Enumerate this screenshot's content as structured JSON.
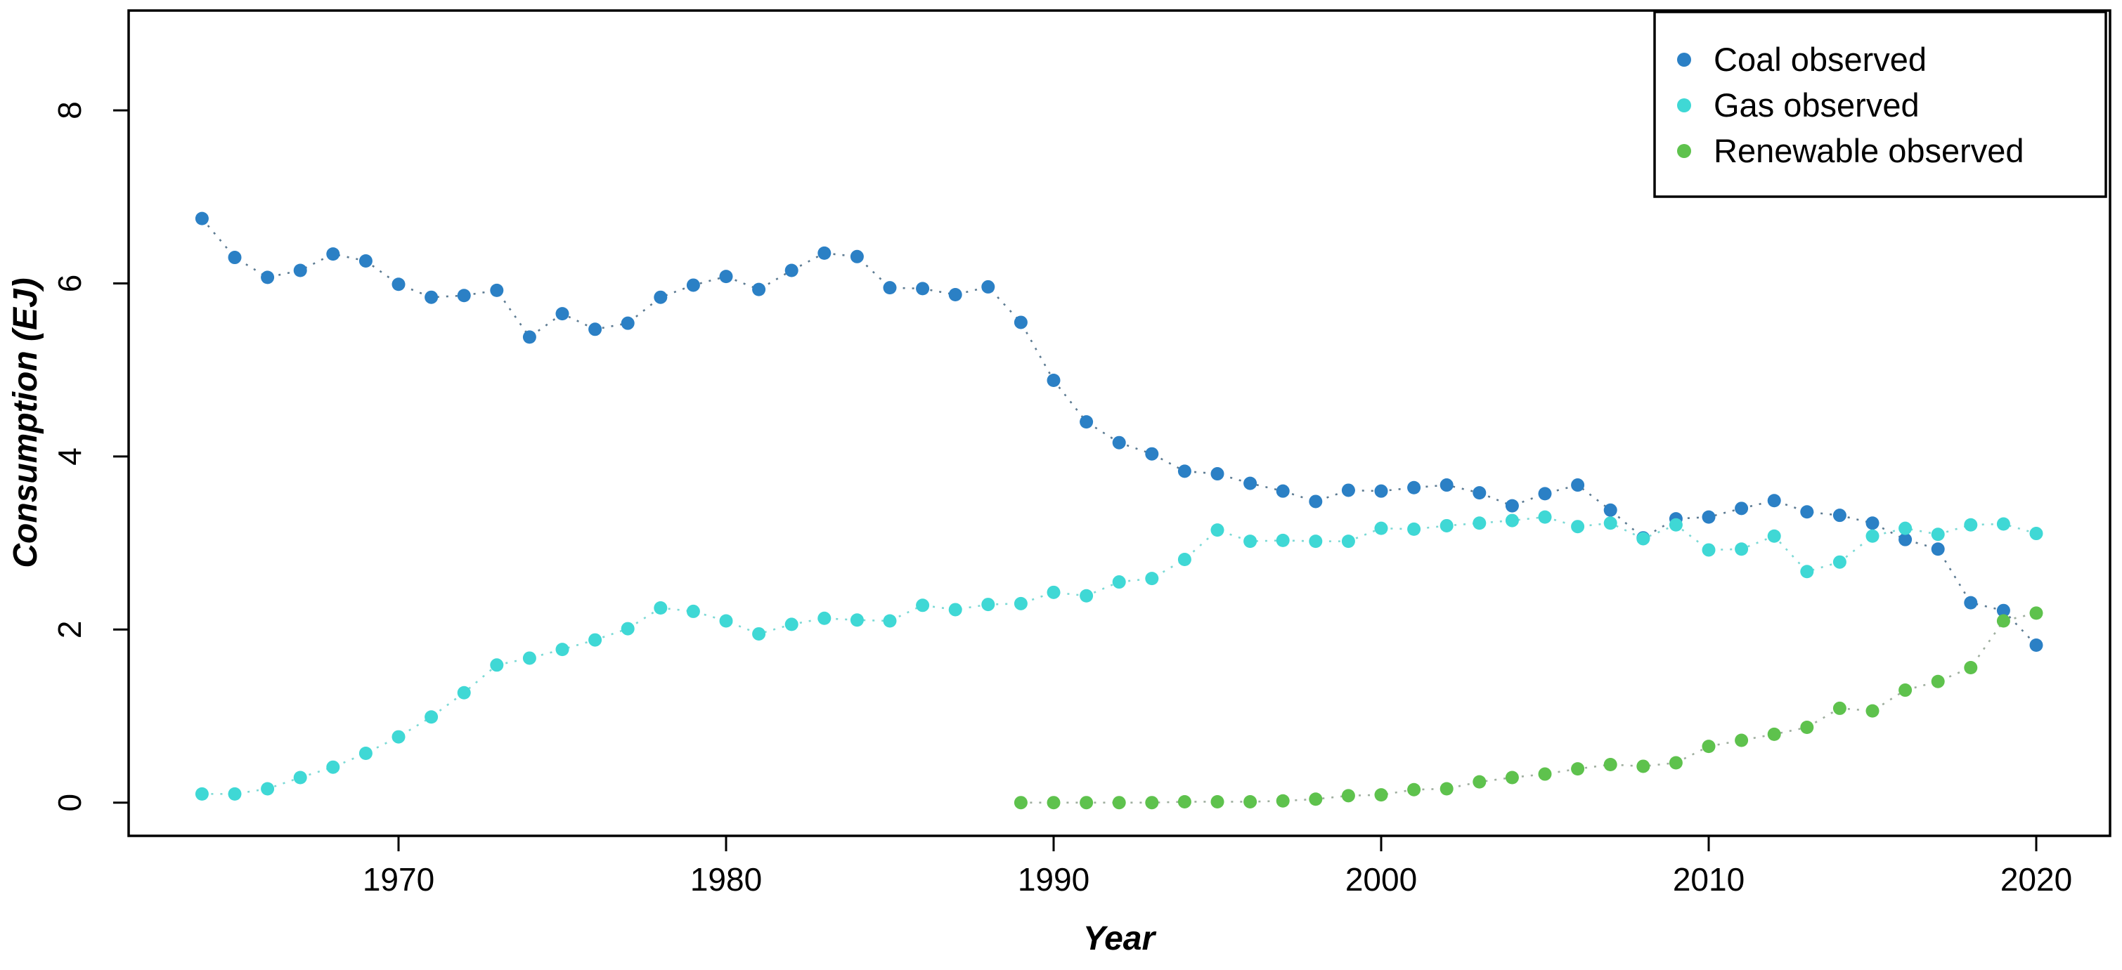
{
  "chart_data": {
    "type": "scatter",
    "title": "",
    "xlabel": "Year",
    "ylabel": "Consumption (EJ)",
    "x_ticks": [
      1970,
      1980,
      1990,
      2000,
      2010,
      2020
    ],
    "y_ticks": [
      0,
      2,
      4,
      6,
      8
    ],
    "xlim": [
      1961.8,
      2022.3
    ],
    "ylim": [
      -0.38,
      9.15
    ],
    "grid": false,
    "legend_position": "top-right",
    "point_style": "filled-circle",
    "line_style": "dotted",
    "series": [
      {
        "name": "Coal observed",
        "color": "#2b80c5",
        "line_color": "#5d7b92",
        "years": [
          1964,
          1965,
          1966,
          1967,
          1968,
          1969,
          1970,
          1971,
          1972,
          1973,
          1974,
          1975,
          1976,
          1977,
          1978,
          1979,
          1980,
          1981,
          1982,
          1983,
          1984,
          1985,
          1986,
          1987,
          1988,
          1989,
          1990,
          1991,
          1992,
          1993,
          1994,
          1995,
          1996,
          1997,
          1998,
          1999,
          2000,
          2001,
          2002,
          2003,
          2004,
          2005,
          2006,
          2007,
          2008,
          2009,
          2010,
          2011,
          2012,
          2013,
          2014,
          2015,
          2016,
          2017,
          2018,
          2019,
          2020
        ],
        "values": [
          6.75,
          6.3,
          6.07,
          6.15,
          6.34,
          6.26,
          5.99,
          5.84,
          5.86,
          5.92,
          5.38,
          5.65,
          5.47,
          5.54,
          5.84,
          5.98,
          6.08,
          5.93,
          6.15,
          6.35,
          6.31,
          5.95,
          5.94,
          5.87,
          5.96,
          5.55,
          4.88,
          4.4,
          4.16,
          4.03,
          3.83,
          3.8,
          3.69,
          3.6,
          3.48,
          3.61,
          3.6,
          3.64,
          3.67,
          3.58,
          3.43,
          3.57,
          3.67,
          3.38,
          3.06,
          3.28,
          3.3,
          3.4,
          3.49,
          3.36,
          3.32,
          3.23,
          3.04,
          2.93,
          2.31,
          2.22,
          1.82
        ]
      },
      {
        "name": "Gas observed",
        "color": "#3fd8d5",
        "line_color": "#7cd9d5",
        "years": [
          1964,
          1965,
          1966,
          1967,
          1968,
          1969,
          1970,
          1971,
          1972,
          1973,
          1974,
          1975,
          1976,
          1977,
          1978,
          1979,
          1980,
          1981,
          1982,
          1983,
          1984,
          1985,
          1986,
          1987,
          1988,
          1989,
          1990,
          1991,
          1992,
          1993,
          1994,
          1995,
          1996,
          1997,
          1998,
          1999,
          2000,
          2001,
          2002,
          2003,
          2004,
          2005,
          2006,
          2007,
          2008,
          2009,
          2010,
          2011,
          2012,
          2013,
          2014,
          2015,
          2016,
          2017,
          2018,
          2019,
          2020
        ],
        "values": [
          0.1,
          0.1,
          0.16,
          0.29,
          0.41,
          0.57,
          0.76,
          0.99,
          1.27,
          1.59,
          1.67,
          1.77,
          1.88,
          2.01,
          2.25,
          2.21,
          2.1,
          1.95,
          2.06,
          2.13,
          2.11,
          2.1,
          2.28,
          2.23,
          2.29,
          2.3,
          2.43,
          2.39,
          2.55,
          2.59,
          2.81,
          3.15,
          3.02,
          3.03,
          3.02,
          3.02,
          3.17,
          3.16,
          3.2,
          3.23,
          3.26,
          3.3,
          3.19,
          3.23,
          3.05,
          3.21,
          2.92,
          2.93,
          3.08,
          2.67,
          2.78,
          3.08,
          3.17,
          3.1,
          3.21,
          3.22,
          3.11
        ]
      },
      {
        "name": "Renewable observed",
        "color": "#5ec24d",
        "line_color": "#9fae9f",
        "years": [
          1989,
          1990,
          1991,
          1992,
          1993,
          1994,
          1995,
          1996,
          1997,
          1998,
          1999,
          2000,
          2001,
          2002,
          2003,
          2004,
          2005,
          2006,
          2007,
          2008,
          2009,
          2010,
          2011,
          2012,
          2013,
          2014,
          2015,
          2016,
          2017,
          2018,
          2019,
          2020
        ],
        "values": [
          0.0,
          0.0,
          0.0,
          0.0,
          0.0,
          0.01,
          0.01,
          0.01,
          0.02,
          0.04,
          0.08,
          0.09,
          0.15,
          0.16,
          0.24,
          0.29,
          0.33,
          0.39,
          0.44,
          0.42,
          0.46,
          0.65,
          0.72,
          0.79,
          0.87,
          1.09,
          1.06,
          1.3,
          1.4,
          1.56,
          2.1,
          2.19
        ]
      }
    ]
  }
}
